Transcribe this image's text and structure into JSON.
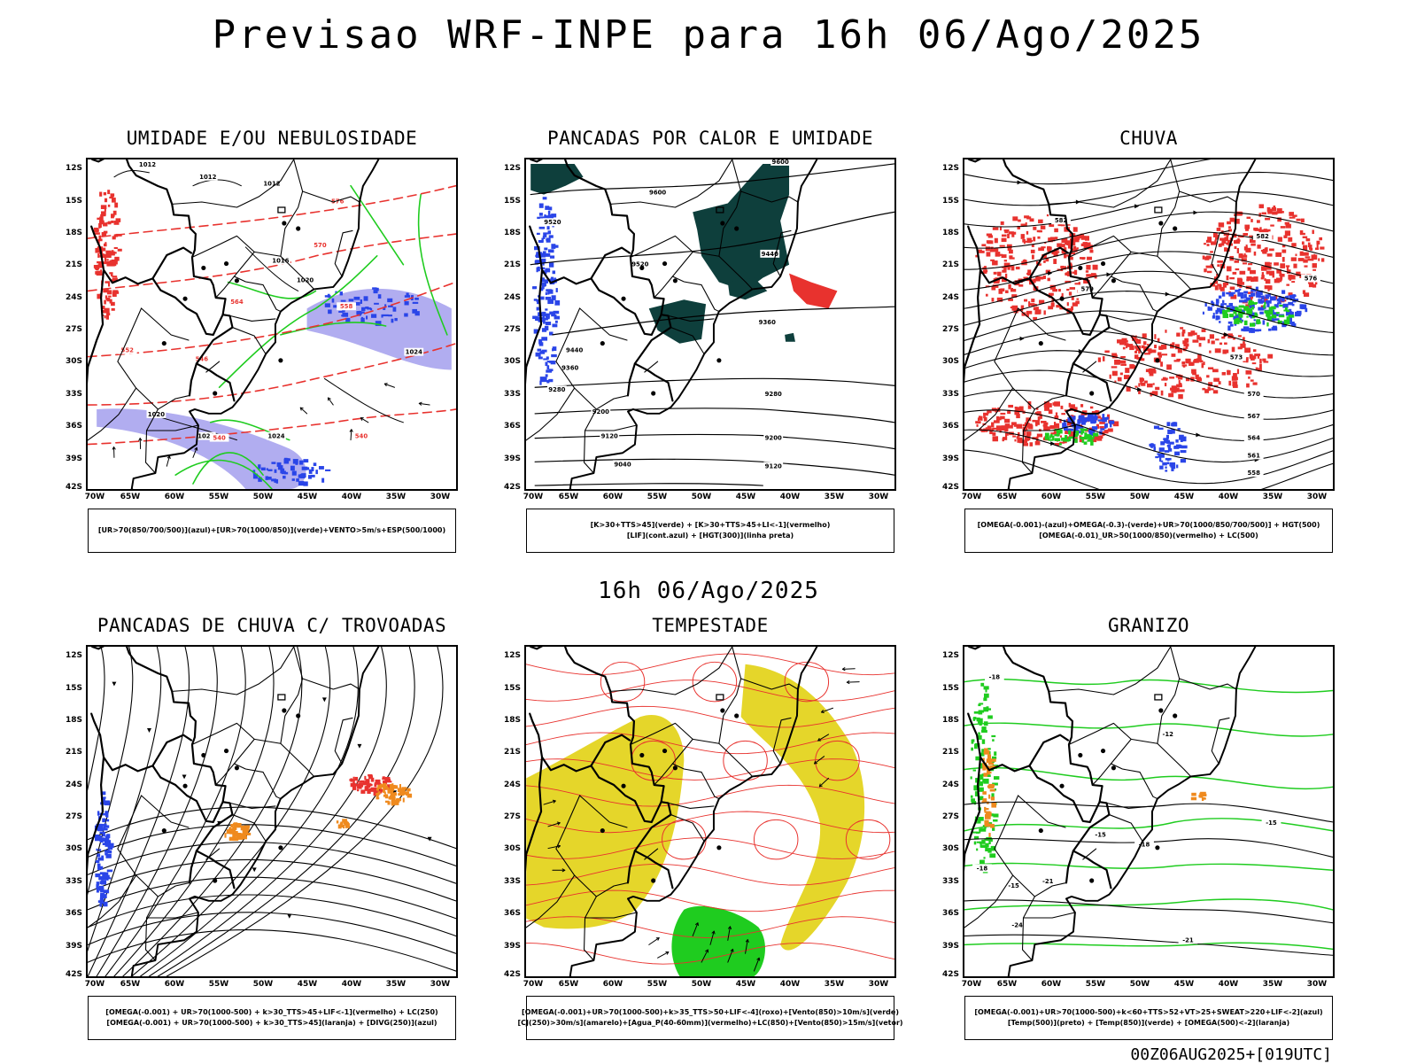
{
  "header": {
    "title": "Previsao WRF-INPE  para 16h 06/Ago/2025",
    "mid_title": "16h 06/Ago/2025",
    "footer_stamp": "00Z06AUG2025+[019UTC]"
  },
  "axes": {
    "lat_labels": [
      "12S",
      "15S",
      "18S",
      "21S",
      "24S",
      "27S",
      "30S",
      "33S",
      "36S",
      "39S",
      "42S"
    ],
    "lon_labels": [
      "70W",
      "65W",
      "60W",
      "55W",
      "50W",
      "45W",
      "40W",
      "35W",
      "30W"
    ]
  },
  "panels": [
    {
      "id": "umidade",
      "title": "UMIDADE E/OU NEBULOSIDADE",
      "legend": [
        "[UR>70(850/700/500)](azul)+[UR>70(1000/850)](verde)+VENTO>5m/s+ESP(500/1000)"
      ],
      "contour_labels": [
        "1012",
        "1012",
        "1012",
        "1016",
        "1020",
        "1020",
        "1020",
        "1024",
        "1024",
        "576",
        "570",
        "564",
        "558",
        "552",
        "546",
        "540",
        "540"
      ]
    },
    {
      "id": "pancadas-calor",
      "title": "PANCADAS POR CALOR E UMIDADE",
      "legend": [
        "[K>30+TTS>45](verde) + [K>30+TTS>45+LI<-1](vermelho)",
        "[LIF](cont.azul) + [HGT(300)](linha preta)"
      ],
      "contour_labels": [
        "9600",
        "9600",
        "9520",
        "9520",
        "9440",
        "9440",
        "9360",
        "9360",
        "9280",
        "9280",
        "9200",
        "9200",
        "9120",
        "9120",
        "9040"
      ]
    },
    {
      "id": "chuva",
      "title": "CHUVA",
      "legend": [
        "[OMEGA(-0.001)-(azul)+OMEGA(-0.3)-(verde)+UR>70(1000/850/700/500)] + HGT(500)",
        "[OMEGA(-0.01)_UR>50(1000/850)(vermelho) + LC(500)"
      ],
      "contour_labels": [
        "582",
        "582",
        "579",
        "576",
        "573",
        "570",
        "567",
        "564",
        "561",
        "558"
      ]
    },
    {
      "id": "pancadas-trovoadas",
      "title": "PANCADAS DE CHUVA C/ TROVOADAS",
      "legend": [
        "[OMEGA(-0.001) + UR>70(1000-500) + k>30_TTS>45+LIF<-1](vermelho) + LC(250)",
        "[OMEGA(-0.001) + UR>70(1000-500) + k>30_TTS>45](laranja) + [DIVG(250)](azul)"
      ],
      "contour_labels": []
    },
    {
      "id": "tempestade",
      "title": "TEMPESTADE",
      "legend": [
        "[OMEGA(-0.001)+UR>70(1000-500)+k>35_TTS>50+LIF<-4](roxo)+[Vento(850)>10m/s](verde)",
        "[CJ(250)>30m/s](amarelo)+[Agua_P(40-60mm)](vermelho)+LC(850)+[Vento(850)>15m/s](vetor)"
      ],
      "contour_labels": []
    },
    {
      "id": "granizo",
      "title": "GRANIZO",
      "legend": [
        "[OMEGA(-0.001)+UR>70(1000-500)+k<60+TTS>52+VT>25+SWEAT>220+LIF<-2](azul)",
        "[Temp(500)](preto) + [Temp(850)](verde) + [OMEGA(500)<-2](laranja)"
      ],
      "contour_labels": [
        "-18",
        "-15",
        "-15",
        "-12",
        "-18",
        "-21",
        "-24",
        "-15",
        "-18",
        "-21"
      ]
    }
  ],
  "colors": {
    "red": "#e8322e",
    "green": "#1fcc1f",
    "blue": "#2a45e8",
    "lavender": "#a9a4ee",
    "darkgreen": "#0e3f3c",
    "yellow": "#e5d62a",
    "orange": "#ef8a1e"
  }
}
